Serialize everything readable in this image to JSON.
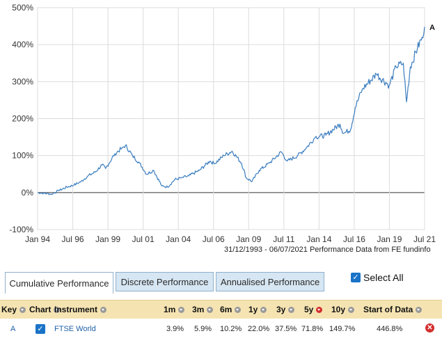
{
  "chart_data": {
    "type": "line",
    "title": "",
    "xlabel": "",
    "ylabel": "",
    "y_ticks": [
      "500%",
      "400%",
      "300%",
      "200%",
      "100%",
      "0%",
      "-100%"
    ],
    "ylim": [
      -100,
      500
    ],
    "x_ticks": [
      "Jan 94",
      "Jul 96",
      "Jan 99",
      "Jul 01",
      "Jan 04",
      "Jul 06",
      "Jan 09",
      "Jul 11",
      "Jan 14",
      "Jul 16",
      "Jan 19",
      "Jul 21"
    ],
    "grid": true,
    "series": [
      {
        "name": "A",
        "color": "#3a7dbf",
        "x": [
          "1993-12-31",
          "1994-06-30",
          "1994-12-31",
          "1995-06-30",
          "1996-01-31",
          "1996-07-31",
          "1997-01-31",
          "1997-07-31",
          "1998-01-31",
          "1998-07-31",
          "1998-10-31",
          "1999-06-30",
          "1999-12-31",
          "2000-03-31",
          "2000-09-30",
          "2001-03-31",
          "2001-09-30",
          "2002-03-31",
          "2002-10-31",
          "2003-03-31",
          "2003-09-30",
          "2004-03-31",
          "2004-09-30",
          "2005-06-30",
          "2006-03-31",
          "2006-07-31",
          "2007-03-31",
          "2007-10-31",
          "2008-06-30",
          "2008-10-31",
          "2009-03-31",
          "2009-09-30",
          "2010-06-30",
          "2011-04-30",
          "2011-09-30",
          "2012-06-30",
          "2013-01-31",
          "2013-09-30",
          "2014-06-30",
          "2015-06-30",
          "2015-09-30",
          "2016-03-31",
          "2016-07-31",
          "2017-01-31",
          "2018-01-31",
          "2018-12-31",
          "2019-06-30",
          "2019-12-31",
          "2020-03-23",
          "2020-06-30",
          "2020-12-31",
          "2021-04-30",
          "2021-07-06"
        ],
        "values": [
          0,
          -2,
          -4,
          5,
          15,
          20,
          30,
          45,
          55,
          75,
          65,
          105,
          120,
          128,
          100,
          80,
          50,
          60,
          18,
          15,
          35,
          40,
          45,
          60,
          85,
          78,
          100,
          112,
          80,
          40,
          30,
          60,
          80,
          110,
          85,
          100,
          120,
          150,
          155,
          185,
          160,
          170,
          230,
          280,
          320,
          290,
          340,
          350,
          245,
          340,
          390,
          420,
          448
        ]
      }
    ]
  },
  "chart_source": "31/12/1993 - 06/07/2021 Performance Data from FE fundinfo",
  "tabs": [
    {
      "label": "Cumulative Performance",
      "active": true
    },
    {
      "label": "Discrete Performance",
      "active": false
    },
    {
      "label": "Annualised Performance",
      "active": false
    }
  ],
  "select_all": {
    "label": "Select All",
    "checked": true
  },
  "table": {
    "headers": {
      "key": "Key",
      "chart": "Chart",
      "instrument": "Instrument",
      "m1": "1m",
      "m3": "3m",
      "m6": "6m",
      "y1": "1y",
      "y3": "3y",
      "y5": "5y",
      "y10": "10y",
      "start": "Start of Data"
    },
    "rows": [
      {
        "key": "A",
        "chart_checked": true,
        "instrument": "FTSE World",
        "m1": "3.9%",
        "m3": "5.9%",
        "m6": "10.2%",
        "y1": "22.0%",
        "y3": "37.5%",
        "y5": "71.8%",
        "y10": "149.7%",
        "start": "446.8%"
      }
    ]
  },
  "colors": {
    "accent": "#3a7dbf",
    "header_bg": "#f5e4b2",
    "tab_bg": "#d6e6f3",
    "remove": "#d32f2f"
  }
}
